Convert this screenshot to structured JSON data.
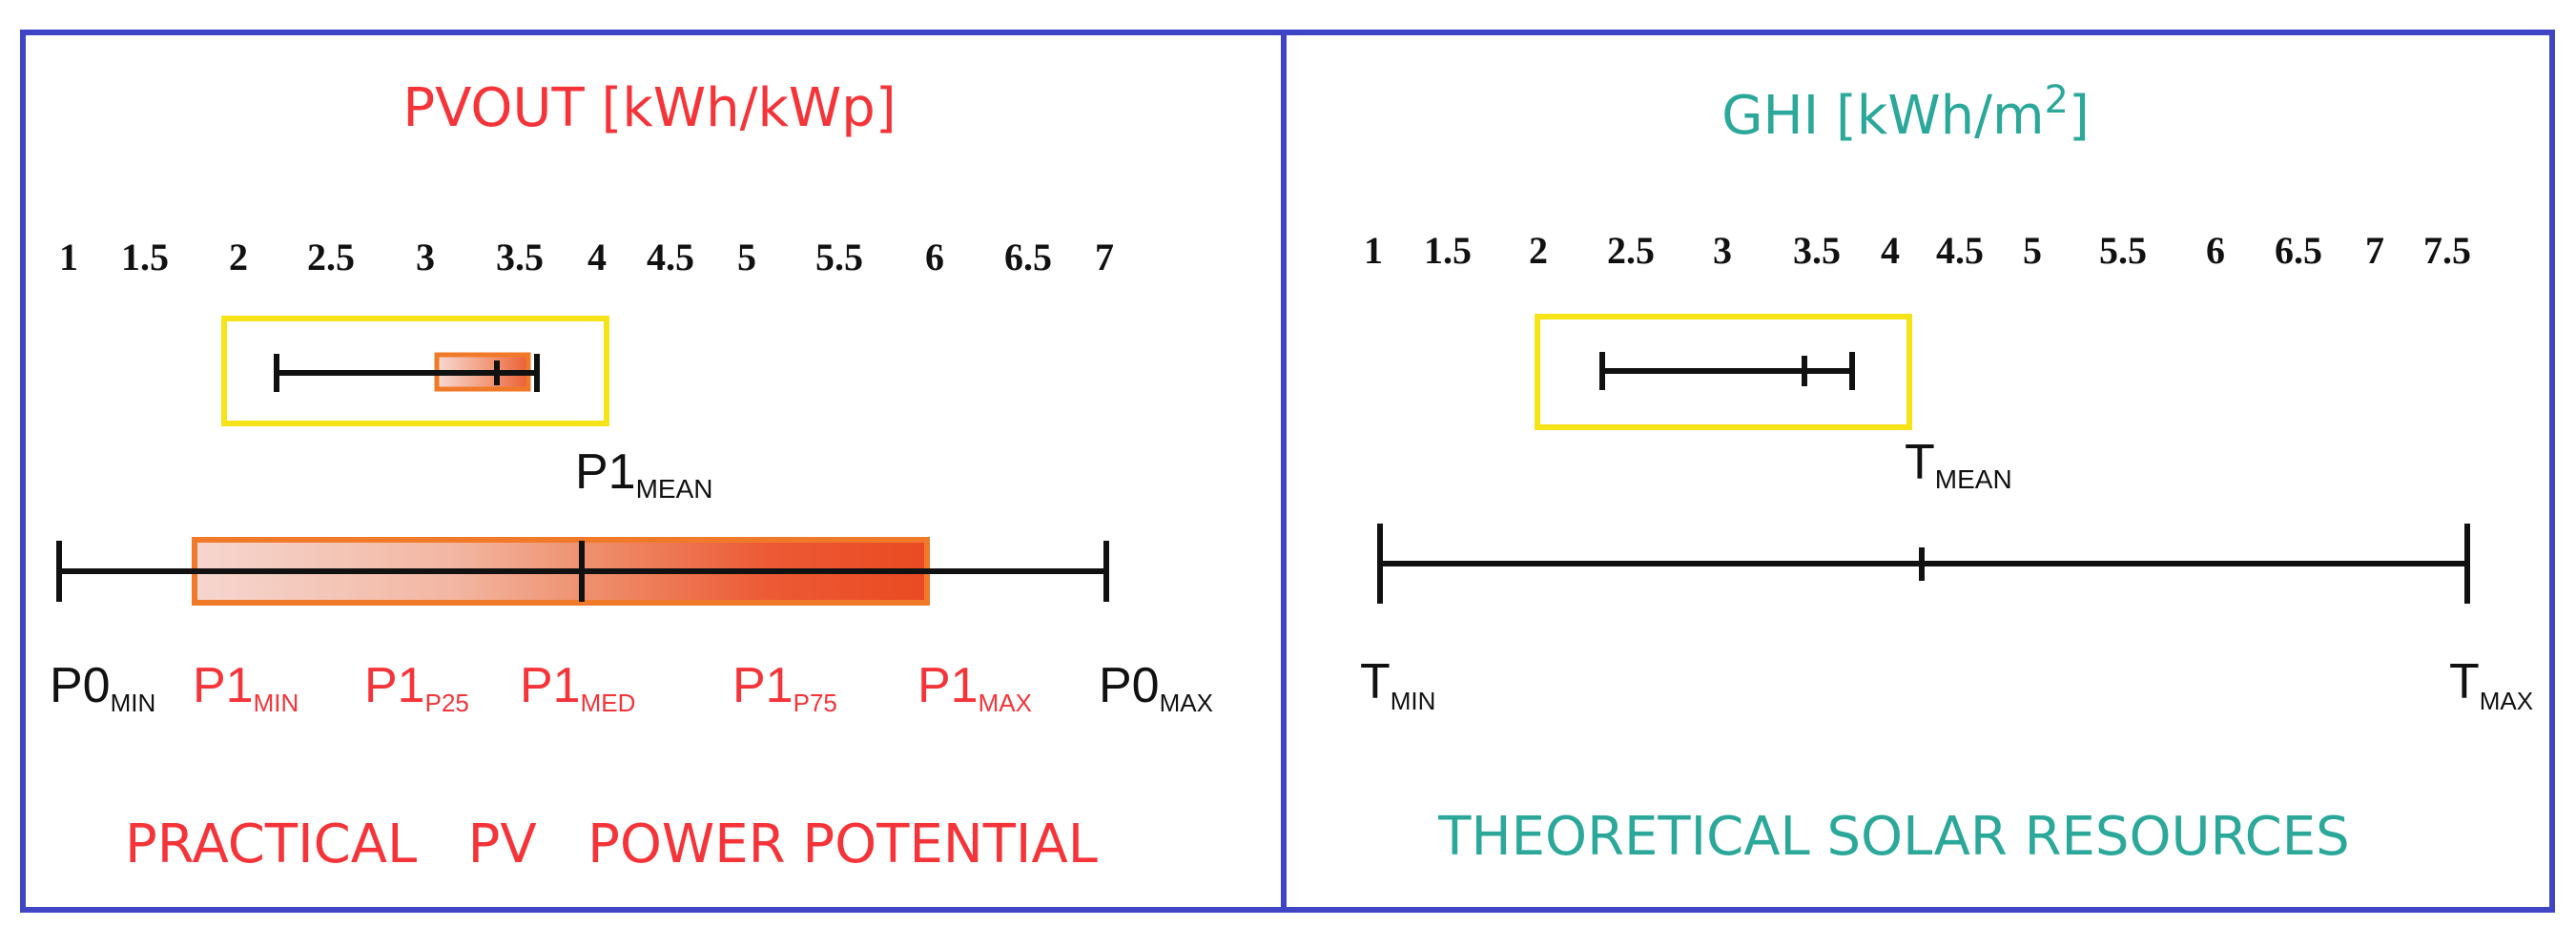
{
  "colors": {
    "frame": "#3f45c4",
    "red": "#f5343a",
    "teal": "#2ba89a",
    "yellow": "#f7e418",
    "orange": "#f07a2a",
    "black": "#111111"
  },
  "left": {
    "title": "PVOUT [kWh/kWp]",
    "ticks": [
      "1",
      "1.5",
      "2",
      "2.5",
      "3",
      "3.5",
      "4",
      "4.5",
      "5",
      "5.5",
      "6",
      "6.5",
      "7"
    ],
    "mean_label": {
      "main": "P1",
      "sub": "MEAN"
    },
    "labels": {
      "p0min": {
        "main": "P0",
        "sub": "MIN"
      },
      "p1min": {
        "main": "P1",
        "sub": "MIN"
      },
      "p1p25": {
        "main": "P1",
        "sub": "P25"
      },
      "p1med": {
        "main": "P1",
        "sub": "MED"
      },
      "p1p75": {
        "main": "P1",
        "sub": "P75"
      },
      "p1max": {
        "main": "P1",
        "sub": "MAX"
      },
      "p0max": {
        "main": "P0",
        "sub": "MAX"
      }
    },
    "footer": "PRACTICAL   PV   POWER POTENTIAL"
  },
  "right": {
    "title_main": "GHI [kWh/m",
    "title_sup": "2",
    "title_end": "]",
    "ticks": [
      "1",
      "1.5",
      "2",
      "2.5",
      "3",
      "3.5",
      "4",
      "4.5",
      "5",
      "5.5",
      "6",
      "6.5",
      "7",
      "7.5"
    ],
    "mean_label": {
      "main": "T",
      "sub": "MEAN"
    },
    "labels": {
      "tmin": {
        "main": "T",
        "sub": "MIN"
      },
      "tmax": {
        "main": "T",
        "sub": "MAX"
      }
    },
    "footer": "THEORETICAL SOLAR RESOURCES"
  }
}
